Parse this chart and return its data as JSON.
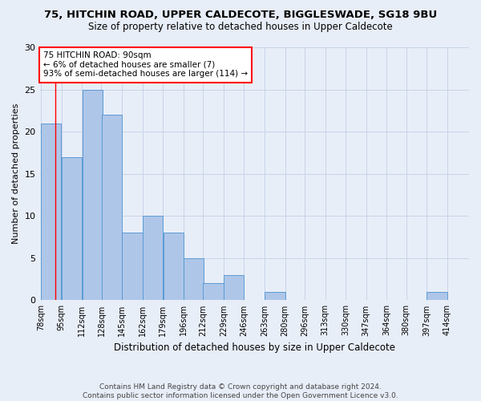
{
  "title1": "75, HITCHIN ROAD, UPPER CALDECOTE, BIGGLESWADE, SG18 9BU",
  "title2": "Size of property relative to detached houses in Upper Caldecote",
  "xlabel": "Distribution of detached houses by size in Upper Caldecote",
  "ylabel": "Number of detached properties",
  "footnote": "Contains HM Land Registry data © Crown copyright and database right 2024.\nContains public sector information licensed under the Open Government Licence v3.0.",
  "bin_labels": [
    "78sqm",
    "95sqm",
    "112sqm",
    "128sqm",
    "145sqm",
    "162sqm",
    "179sqm",
    "196sqm",
    "212sqm",
    "229sqm",
    "246sqm",
    "263sqm",
    "280sqm",
    "296sqm",
    "313sqm",
    "330sqm",
    "347sqm",
    "364sqm",
    "380sqm",
    "397sqm",
    "414sqm"
  ],
  "bin_left_edges": [
    78,
    95,
    112,
    128,
    145,
    162,
    179,
    196,
    212,
    229,
    246,
    263,
    280,
    296,
    313,
    330,
    347,
    364,
    380,
    397,
    414
  ],
  "bin_width": 17,
  "bar_heights": [
    21,
    17,
    25,
    22,
    8,
    10,
    8,
    5,
    2,
    3,
    0,
    1,
    0,
    0,
    0,
    0,
    0,
    0,
    0,
    1,
    0
  ],
  "bar_color": "#aec6e8",
  "bar_edge_color": "#5b9bd5",
  "property_line_x": 90,
  "property_line_color": "red",
  "annotation_text": "75 HITCHIN ROAD: 90sqm\n← 6% of detached houses are smaller (7)\n93% of semi-detached houses are larger (114) →",
  "annotation_box_color": "white",
  "annotation_box_edge_color": "red",
  "ylim": [
    0,
    30
  ],
  "yticks": [
    0,
    5,
    10,
    15,
    20,
    25,
    30
  ],
  "grid_color": "#c8d4e8",
  "background_color": "#e8eef8",
  "title1_fontsize": 9.5,
  "title2_fontsize": 8.5,
  "ylabel_fontsize": 8,
  "xlabel_fontsize": 8.5,
  "footnote_fontsize": 6.5,
  "tick_fontsize": 7
}
